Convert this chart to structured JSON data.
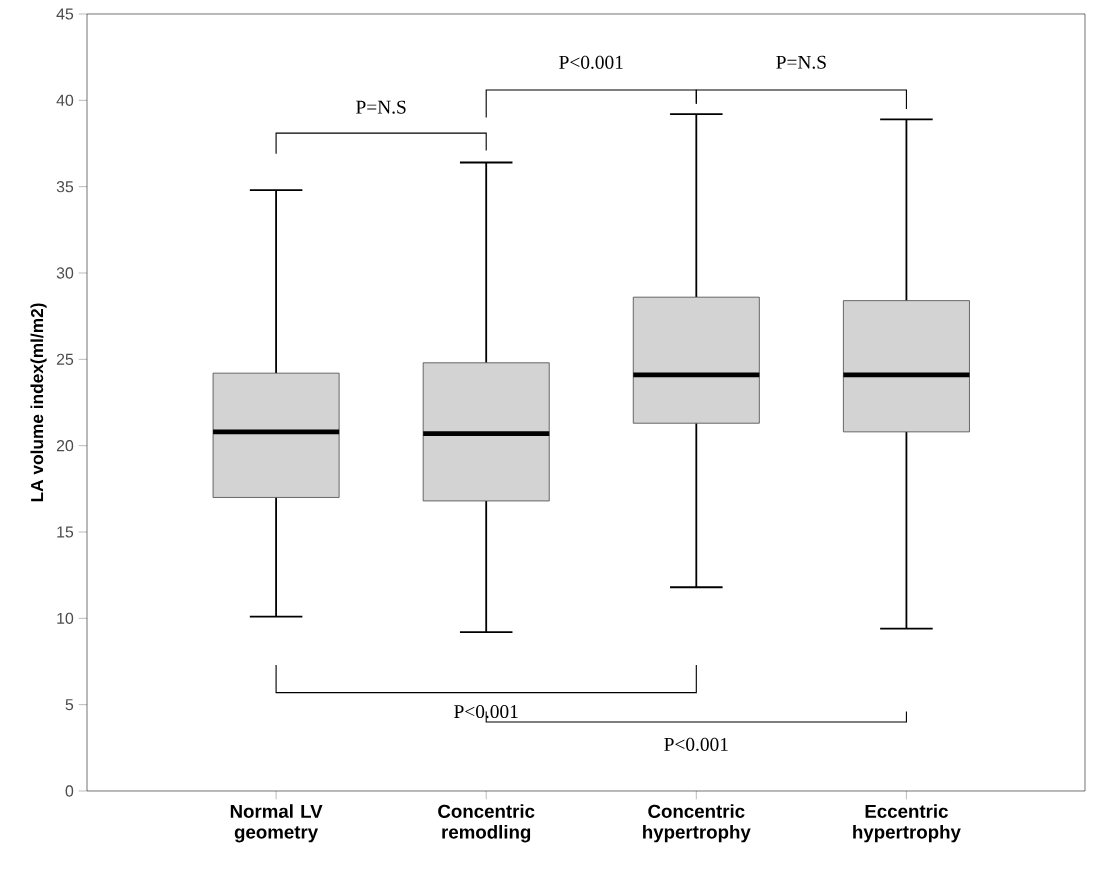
{
  "chart_data": {
    "type": "box",
    "ylabel": "LA volume index(ml/m2)",
    "categories": [
      "Normal LV geometry",
      "Concentric remodling",
      "Concentric hypertrophy",
      "Eccentric hypertrophy"
    ],
    "series": [
      {
        "color": "#d3d3d3",
        "boxes": [
          {
            "low": 10.1,
            "q1": 17.0,
            "median": 20.8,
            "q3": 24.2,
            "high": 34.8
          },
          {
            "low": 9.2,
            "q1": 16.8,
            "median": 20.7,
            "q3": 24.8,
            "high": 36.4
          },
          {
            "low": 11.8,
            "q1": 21.3,
            "median": 24.1,
            "q3": 28.6,
            "high": 39.2
          },
          {
            "low": 9.4,
            "q1": 20.8,
            "median": 24.1,
            "q3": 28.4,
            "high": 38.9
          }
        ]
      }
    ],
    "ylim": [
      0,
      45
    ],
    "yticks": [
      0,
      5,
      10,
      15,
      20,
      25,
      30,
      35,
      40,
      45
    ],
    "annotations": [
      "P=N.S",
      "P<0.001",
      "P=N.S",
      "P<0.001",
      "P<0.001"
    ]
  }
}
